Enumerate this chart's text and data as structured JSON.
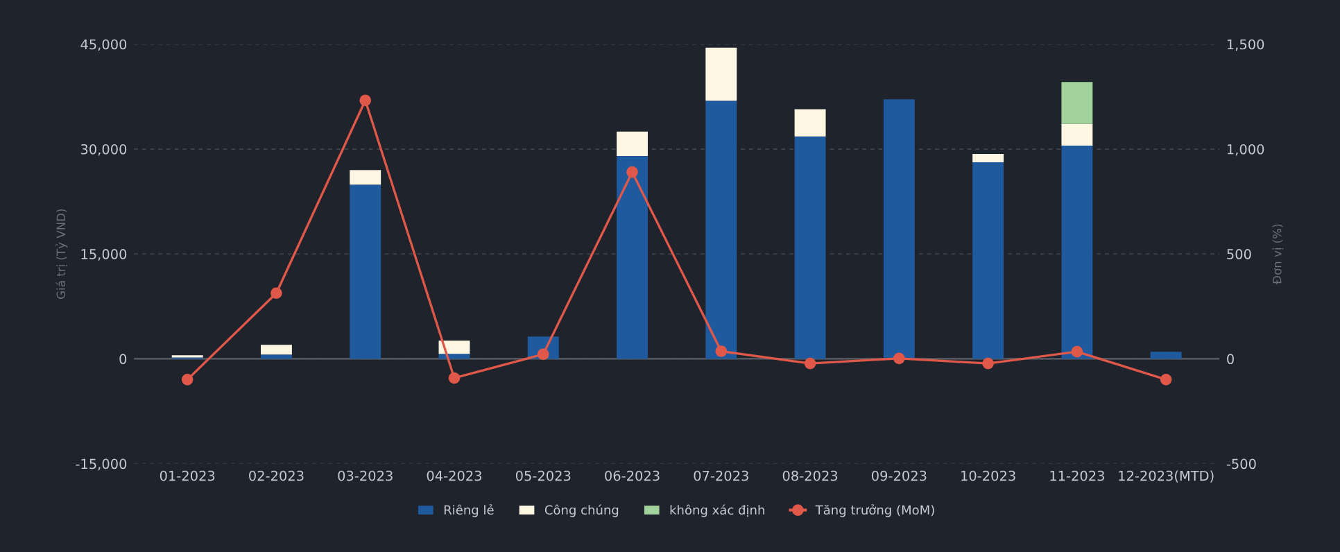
{
  "chart_data": {
    "type": "bar",
    "stacked": true,
    "categories": [
      "01-2023",
      "02-2023",
      "03-2023",
      "04-2023",
      "05-2023",
      "06-2023",
      "07-2023",
      "08-2023",
      "09-2023",
      "10-2023",
      "11-2023",
      "12-2023(MTD)"
    ],
    "series": [
      {
        "name": "Riêng lẻ",
        "color": "#1f5a9e",
        "values": [
          200,
          600,
          24900,
          700,
          3200,
          29000,
          36900,
          31800,
          37100,
          28100,
          30500,
          1000
        ]
      },
      {
        "name": "Công chúng",
        "color": "#fdf6e3",
        "values": [
          300,
          1400,
          2100,
          1900,
          0,
          3500,
          7600,
          3900,
          0,
          1200,
          3100,
          0
        ]
      },
      {
        "name": "không xác định",
        "color": "#a3d39c",
        "values": [
          0,
          0,
          0,
          0,
          0,
          0,
          0,
          0,
          0,
          0,
          6000,
          0
        ]
      },
      {
        "name": "Tăng trưởng (MoM)",
        "type": "line",
        "axis": "y2",
        "color": "#e0584a",
        "marker": "circle",
        "values": [
          -99,
          313,
          1232,
          -92,
          22,
          890,
          36,
          -22,
          2,
          -22,
          34,
          -99
        ]
      }
    ],
    "ylabel": "Giá trị (Tỷ VND)",
    "y2label": "Đơn vị (%)",
    "ylim": [
      -15000,
      45000
    ],
    "yticks": [
      {
        "value": -15000,
        "label": "-15,000"
      },
      {
        "value": 0,
        "label": "0"
      },
      {
        "value": 15000,
        "label": "15,000"
      },
      {
        "value": 30000,
        "label": "30,000"
      },
      {
        "value": 45000,
        "label": "45,000"
      }
    ],
    "y2lim": [
      -500,
      1500
    ],
    "y2ticks": [
      {
        "value": -500,
        "label": "-500"
      },
      {
        "value": 0,
        "label": "0"
      },
      {
        "value": 500,
        "label": "500"
      },
      {
        "value": 1000,
        "label": "1,000"
      },
      {
        "value": 1500,
        "label": "1,500"
      }
    ],
    "grid": "y",
    "legend": "bottom"
  }
}
